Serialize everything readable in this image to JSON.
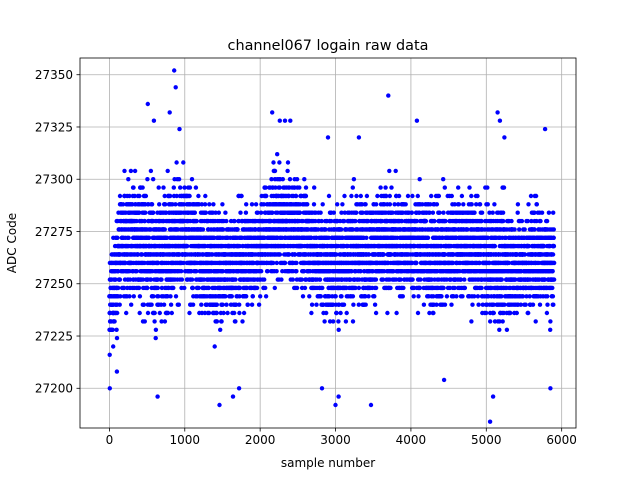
{
  "chart_data": {
    "type": "scatter",
    "title": "channel067 logain raw data",
    "xlabel": "sample number",
    "ylabel": "ADC Code",
    "xlim": [
      -390,
      6190
    ],
    "ylim": [
      27181,
      27358
    ],
    "xticks": [
      0,
      1000,
      2000,
      3000,
      4000,
      5000,
      6000
    ],
    "yticks": [
      27200,
      27225,
      27250,
      27275,
      27300,
      27325,
      27350
    ],
    "xtick_labels": [
      "0",
      "1000",
      "2000",
      "3000",
      "4000",
      "5000",
      "6000"
    ],
    "ytick_labels": [
      "27200",
      "27225",
      "27250",
      "27275",
      "27300",
      "27325",
      "27350"
    ],
    "grid": true,
    "legend": "none",
    "marker_color": "#0000ff",
    "series": [
      {
        "n_points": 5900,
        "x_range": [
          0,
          5900
        ],
        "quantization_step": 4,
        "dense_band": [
          27228,
          27296
        ],
        "upper_envelope": [
          [
            0,
            27268
          ],
          [
            100,
            27300
          ],
          [
            200,
            27312
          ],
          [
            500,
            27316
          ],
          [
            600,
            27308
          ],
          [
            900,
            27320
          ],
          [
            1200,
            27306
          ],
          [
            1500,
            27300
          ],
          [
            1800,
            27300
          ],
          [
            2000,
            27306
          ],
          [
            2200,
            27320
          ],
          [
            2400,
            27316
          ],
          [
            2600,
            27310
          ],
          [
            2800,
            27300
          ],
          [
            3000,
            27304
          ],
          [
            3200,
            27312
          ],
          [
            3400,
            27304
          ],
          [
            3700,
            27310
          ],
          [
            4000,
            27304
          ],
          [
            4200,
            27312
          ],
          [
            4400,
            27308
          ],
          [
            4700,
            27306
          ],
          [
            5000,
            27300
          ],
          [
            5200,
            27304
          ],
          [
            5500,
            27296
          ],
          [
            5700,
            27304
          ],
          [
            5900,
            27296
          ]
        ],
        "lower_envelope": [
          [
            0,
            27204
          ],
          [
            100,
            27220
          ],
          [
            300,
            27230
          ],
          [
            600,
            27216
          ],
          [
            900,
            27226
          ],
          [
            1200,
            27226
          ],
          [
            1400,
            27212
          ],
          [
            1600,
            27222
          ],
          [
            1900,
            27226
          ],
          [
            2200,
            27238
          ],
          [
            2500,
            27236
          ],
          [
            2700,
            27228
          ],
          [
            2900,
            27218
          ],
          [
            3100,
            27218
          ],
          [
            3400,
            27228
          ],
          [
            3700,
            27228
          ],
          [
            4000,
            27232
          ],
          [
            4300,
            27216
          ],
          [
            4600,
            27230
          ],
          [
            4900,
            27228
          ],
          [
            5100,
            27216
          ],
          [
            5400,
            27220
          ],
          [
            5700,
            27226
          ],
          [
            5900,
            27222
          ]
        ],
        "outliers": [
          [
            5,
            27200
          ],
          [
            100,
            27208
          ],
          [
            640,
            27196
          ],
          [
            510,
            27336
          ],
          [
            590,
            27328
          ],
          [
            800,
            27332
          ],
          [
            860,
            27352
          ],
          [
            880,
            27344
          ],
          [
            930,
            27324
          ],
          [
            1460,
            27192
          ],
          [
            1640,
            27196
          ],
          [
            1720,
            27200
          ],
          [
            2160,
            27332
          ],
          [
            2260,
            27328
          ],
          [
            2330,
            27328
          ],
          [
            2400,
            27328
          ],
          [
            2820,
            27200
          ],
          [
            2900,
            27320
          ],
          [
            3000,
            27192
          ],
          [
            3040,
            27196
          ],
          [
            3310,
            27320
          ],
          [
            3470,
            27192
          ],
          [
            3700,
            27340
          ],
          [
            4080,
            27328
          ],
          [
            4440,
            27204
          ],
          [
            5050,
            27184
          ],
          [
            5090,
            27196
          ],
          [
            5150,
            27332
          ],
          [
            5180,
            27328
          ],
          [
            5240,
            27320
          ],
          [
            5780,
            27324
          ],
          [
            5850,
            27200
          ]
        ]
      }
    ]
  }
}
